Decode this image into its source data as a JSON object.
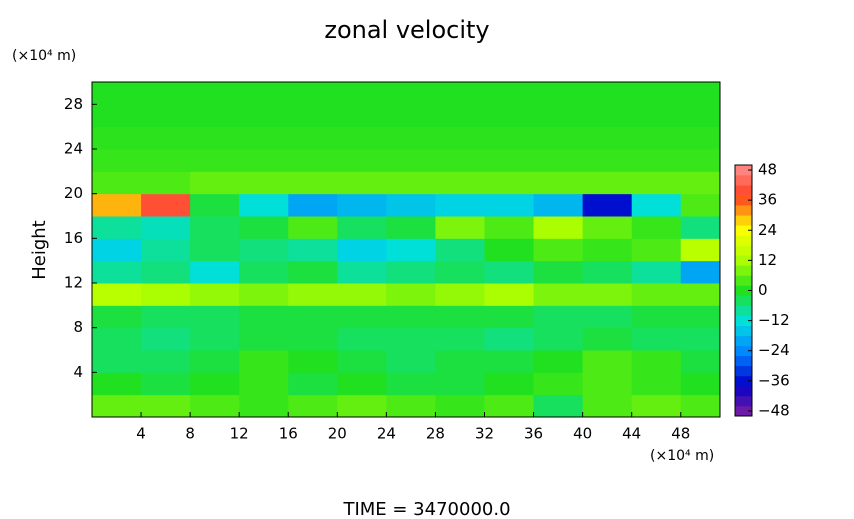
{
  "chart_data": {
    "type": "heatmap",
    "title": "zonal velocity",
    "y_label": "Height",
    "x_unit": "(×10⁴ m)",
    "y_unit": "(×10⁴ m)",
    "footer": "TIME = 3470000.0",
    "x": [
      2,
      6,
      10,
      14,
      18,
      22,
      26,
      30,
      34,
      38,
      42,
      46,
      50
    ],
    "y": [
      1,
      3,
      5,
      7,
      9,
      11,
      13,
      15,
      17,
      19,
      21,
      23,
      25,
      27,
      29
    ],
    "z": [
      [
        6,
        6,
        4,
        2,
        4,
        6,
        4,
        2,
        4,
        -4,
        4,
        6,
        4
      ],
      [
        0,
        -2,
        0,
        2,
        -2,
        0,
        -2,
        -2,
        0,
        2,
        4,
        2,
        0
      ],
      [
        -4,
        -4,
        -2,
        2,
        0,
        -2,
        -4,
        -2,
        -2,
        0,
        4,
        2,
        -2
      ],
      [
        -4,
        -6,
        -4,
        -2,
        -2,
        -4,
        -4,
        -4,
        -6,
        -4,
        -2,
        -4,
        -4
      ],
      [
        -2,
        -4,
        -4,
        -2,
        -2,
        -2,
        -2,
        -2,
        -2,
        -4,
        -4,
        -2,
        -2
      ],
      [
        14,
        12,
        10,
        8,
        10,
        10,
        8,
        10,
        12,
        8,
        8,
        6,
        6
      ],
      [
        -8,
        -6,
        -12,
        -4,
        -2,
        -8,
        -6,
        -4,
        -6,
        -2,
        -4,
        -8,
        -20
      ],
      [
        -14,
        -8,
        -4,
        -6,
        -8,
        -14,
        -12,
        -6,
        0,
        4,
        2,
        4,
        14
      ],
      [
        -8,
        -10,
        -4,
        -2,
        4,
        -4,
        -2,
        8,
        4,
        12,
        6,
        2,
        -6
      ],
      [
        30,
        40,
        -2,
        -12,
        -20,
        -18,
        -16,
        -14,
        -14,
        -18,
        -36,
        -12,
        4
      ],
      [
        4,
        4,
        6,
        6,
        6,
        6,
        6,
        6,
        6,
        6,
        6,
        6,
        6
      ],
      [
        2,
        2,
        2,
        2,
        2,
        2,
        2,
        2,
        2,
        2,
        2,
        2,
        2
      ],
      [
        1,
        1,
        1,
        1,
        1,
        1,
        1,
        1,
        1,
        1,
        1,
        1,
        1
      ],
      [
        0,
        0,
        0,
        0,
        0,
        0,
        0,
        0,
        0,
        0,
        0,
        0,
        0
      ],
      [
        0,
        0,
        0,
        0,
        0,
        0,
        0,
        0,
        0,
        0,
        0,
        0,
        0
      ]
    ],
    "xlim": [
      0,
      51.2
    ],
    "ylim": [
      0,
      30
    ],
    "xticks": [
      4,
      8,
      12,
      16,
      20,
      24,
      28,
      32,
      36,
      40,
      44,
      48
    ],
    "yticks": [
      4,
      8,
      12,
      16,
      20,
      24,
      28
    ],
    "clim": [
      -50,
      50
    ],
    "cticks": [
      48,
      36,
      24,
      12,
      0,
      {
        "value": -12,
        "label": "−12"
      },
      {
        "value": -24,
        "label": "−24"
      },
      {
        "value": -36,
        "label": "−36"
      },
      {
        "value": -48,
        "label": "−48"
      }
    ],
    "colormap": [
      "#8020a0",
      "#0000c8",
      "#0080ff",
      "#00e0e0",
      "#20e020",
      "#b0ff00",
      "#ffff00",
      "#ff4020",
      "#ff9090"
    ]
  }
}
